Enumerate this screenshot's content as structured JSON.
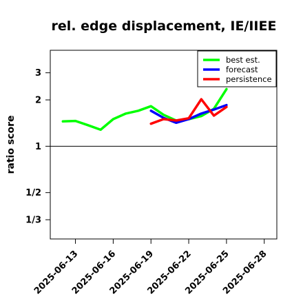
{
  "chart_data": {
    "type": "line",
    "title": "rel. edge displacement, IE/IIEE",
    "xlabel": "",
    "ylabel": "ratio score",
    "y_scale": "log",
    "xlim": [
      "2025-06-11",
      "2025-06-29"
    ],
    "ylim": [
      0.25,
      4.2
    ],
    "x_ticks": [
      "2025-06-13",
      "2025-06-16",
      "2025-06-19",
      "2025-06-22",
      "2025-06-25",
      "2025-06-28"
    ],
    "x_tick_highlight": "2025-06-19",
    "highlight_color": "#228b22",
    "y_ticks": [
      {
        "value": 3,
        "label": "3"
      },
      {
        "value": 2,
        "label": "2"
      },
      {
        "value": 1,
        "label": "1"
      },
      {
        "value": 0.5,
        "label": "1/2"
      },
      {
        "value": 0.3333,
        "label": "1/3"
      }
    ],
    "reference_line": 1,
    "legend_position": "top-right",
    "series": [
      {
        "name": "best est.",
        "color": "#00ff00",
        "points": [
          [
            "2025-06-12",
            1.45
          ],
          [
            "2025-06-13",
            1.46
          ],
          [
            "2025-06-14",
            1.37
          ],
          [
            "2025-06-15",
            1.28
          ],
          [
            "2025-06-16",
            1.5
          ],
          [
            "2025-06-17",
            1.63
          ],
          [
            "2025-06-18",
            1.7
          ],
          [
            "2025-06-19",
            1.82
          ],
          [
            "2025-06-20",
            1.6
          ],
          [
            "2025-06-21",
            1.47
          ],
          [
            "2025-06-22",
            1.5
          ],
          [
            "2025-06-23",
            1.57
          ],
          [
            "2025-06-24",
            1.75
          ],
          [
            "2025-06-25",
            2.35
          ]
        ]
      },
      {
        "name": "forecast",
        "color": "#0000ff",
        "points": [
          [
            "2025-06-19",
            1.7
          ],
          [
            "2025-06-20",
            1.53
          ],
          [
            "2025-06-21",
            1.42
          ],
          [
            "2025-06-22",
            1.5
          ],
          [
            "2025-06-23",
            1.63
          ],
          [
            "2025-06-24",
            1.73
          ],
          [
            "2025-06-25",
            1.85
          ]
        ]
      },
      {
        "name": "persistence",
        "color": "#ff0000",
        "points": [
          [
            "2025-06-19",
            1.4
          ],
          [
            "2025-06-20",
            1.5
          ],
          [
            "2025-06-21",
            1.47
          ],
          [
            "2025-06-22",
            1.52
          ],
          [
            "2025-06-23",
            2.02
          ],
          [
            "2025-06-24",
            1.58
          ],
          [
            "2025-06-25",
            1.8
          ]
        ]
      }
    ]
  }
}
